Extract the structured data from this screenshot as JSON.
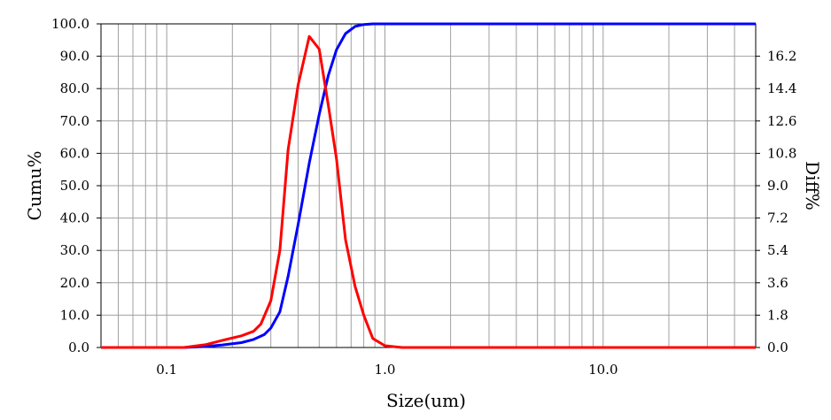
{
  "chart_data": {
    "type": "line",
    "xlabel": "Size(um)",
    "ylabel": "Cumu%",
    "y2label": "Diff%",
    "x_scale": "log",
    "xlim": [
      0.05,
      50
    ],
    "ylim": [
      0,
      100
    ],
    "y2lim": [
      0,
      18
    ],
    "grid": true,
    "x_tick_labels": [
      "0.1",
      "1.0",
      "10.0"
    ],
    "x_tick_values": [
      0.1,
      1,
      10
    ],
    "y_tick_labels": [
      "0.0",
      "10.0",
      "20.0",
      "30.0",
      "40.0",
      "50.0",
      "60.0",
      "70.0",
      "80.0",
      "90.0",
      "100.0"
    ],
    "y2_tick_labels": [
      "0.0",
      "1.8",
      "3.6",
      "5.4",
      "7.2",
      "9.0",
      "10.8",
      "12.6",
      "14.4",
      "16.2"
    ],
    "series": [
      {
        "axis": "left",
        "color": "#0000ff",
        "x": [
          0.05,
          0.12,
          0.15,
          0.18,
          0.22,
          0.25,
          0.28,
          0.3,
          0.33,
          0.36,
          0.4,
          0.45,
          0.5,
          0.55,
          0.6,
          0.66,
          0.73,
          0.8,
          0.88,
          1.0,
          1.2,
          50
        ],
        "y": [
          0,
          0,
          0.3,
          0.8,
          1.5,
          2.5,
          4,
          6,
          11,
          22,
          38,
          57,
          72,
          84,
          92,
          97,
          99.2,
          99.8,
          100,
          100,
          100,
          100
        ]
      },
      {
        "axis": "right",
        "color": "#ff0000",
        "x": [
          0.05,
          0.12,
          0.15,
          0.18,
          0.22,
          0.25,
          0.27,
          0.3,
          0.33,
          0.36,
          0.4,
          0.45,
          0.5,
          0.55,
          0.6,
          0.66,
          0.73,
          0.8,
          0.88,
          1.0,
          1.2,
          50
        ],
        "y": [
          0,
          0,
          0.15,
          0.4,
          0.65,
          0.9,
          1.3,
          2.6,
          5.4,
          11,
          14.6,
          17.3,
          16.6,
          13.5,
          10.5,
          6,
          3.4,
          1.8,
          0.5,
          0.1,
          0,
          0
        ]
      }
    ]
  }
}
